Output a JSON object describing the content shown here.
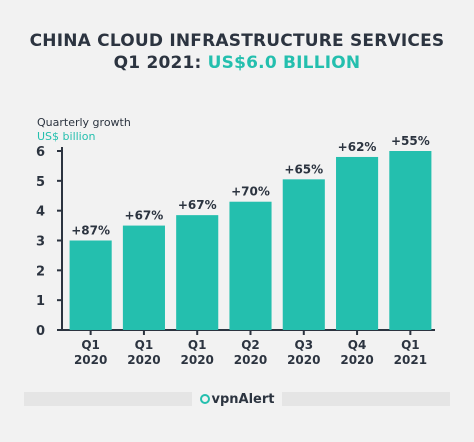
{
  "header": {
    "title_line1": "CHINA CLOUD INFRASTRUCTURE SERVICES",
    "title_line2_prefix": "Q1 2021: ",
    "title_line2_accent": "US$6.0 BILLION"
  },
  "y_axis_caption": {
    "line1": "Quarterly growth",
    "line2": "US$ billion"
  },
  "footer": {
    "brand": "vpnAlert"
  },
  "colors": {
    "bar": "#24bfae",
    "text": "#2c3440",
    "accent": "#24bfae",
    "background": "#f2f2f2"
  },
  "chart_data": {
    "type": "bar",
    "categories": [
      [
        "Q1",
        "2020"
      ],
      [
        "Q1",
        "2020"
      ],
      [
        "Q1",
        "2020"
      ],
      [
        "Q2",
        "2020"
      ],
      [
        "Q3",
        "2020"
      ],
      [
        "Q4",
        "2020"
      ],
      [
        "Q1",
        "2021"
      ]
    ],
    "values": [
      3.0,
      3.5,
      3.85,
      4.3,
      5.05,
      5.8,
      6.0
    ],
    "data_labels": [
      "+87%",
      "+67%",
      "+67%",
      "+70%",
      "+65%",
      "+62%",
      "+55%"
    ],
    "ylim": [
      0,
      6
    ],
    "yticks": [
      0,
      1,
      2,
      3,
      4,
      5,
      6
    ],
    "grid": false,
    "legend": "none"
  }
}
